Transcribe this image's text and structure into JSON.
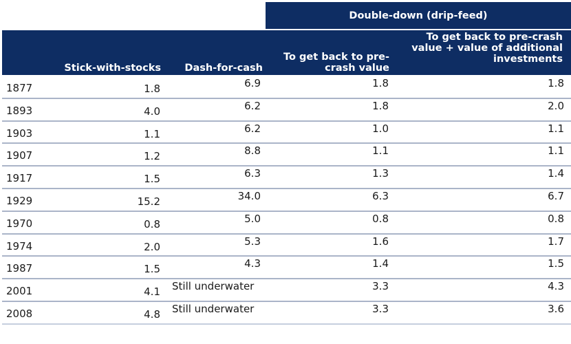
{
  "group_header": "Double-down (drip-feed)",
  "columns": {
    "year": "",
    "stick": "Stick-with-stocks",
    "dash": "Dash-for-cash",
    "dd_precrash": "To get back to pre-crash value",
    "dd_plus": "To get back to pre-crash value + value of additional investments"
  },
  "rows": [
    {
      "year": "1877",
      "stick": "1.8",
      "dash": "6.9",
      "dd_precrash": "1.8",
      "dd_plus": "1.8"
    },
    {
      "year": "1893",
      "stick": "4.0",
      "dash": "6.2",
      "dd_precrash": "1.8",
      "dd_plus": "2.0"
    },
    {
      "year": "1903",
      "stick": "1.1",
      "dash": "6.2",
      "dd_precrash": "1.0",
      "dd_plus": "1.1"
    },
    {
      "year": "1907",
      "stick": "1.2",
      "dash": "8.8",
      "dd_precrash": "1.1",
      "dd_plus": "1.1"
    },
    {
      "year": "1917",
      "stick": "1.5",
      "dash": "6.3",
      "dd_precrash": "1.3",
      "dd_plus": "1.4"
    },
    {
      "year": "1929",
      "stick": "15.2",
      "dash": "34.0",
      "dd_precrash": "6.3",
      "dd_plus": "6.7"
    },
    {
      "year": "1970",
      "stick": "0.8",
      "dash": "5.0",
      "dd_precrash": "0.8",
      "dd_plus": "0.8"
    },
    {
      "year": "1974",
      "stick": "2.0",
      "dash": "5.3",
      "dd_precrash": "1.6",
      "dd_plus": "1.7"
    },
    {
      "year": "1987",
      "stick": "1.5",
      "dash": "4.3",
      "dd_precrash": "1.4",
      "dd_plus": "1.5"
    },
    {
      "year": "2001",
      "stick": "4.1",
      "dash": "Still underwater",
      "dd_precrash": "3.3",
      "dd_plus": "4.3"
    },
    {
      "year": "2008",
      "stick": "4.8",
      "dash": "Still underwater",
      "dd_precrash": "3.3",
      "dd_plus": "3.6"
    }
  ]
}
